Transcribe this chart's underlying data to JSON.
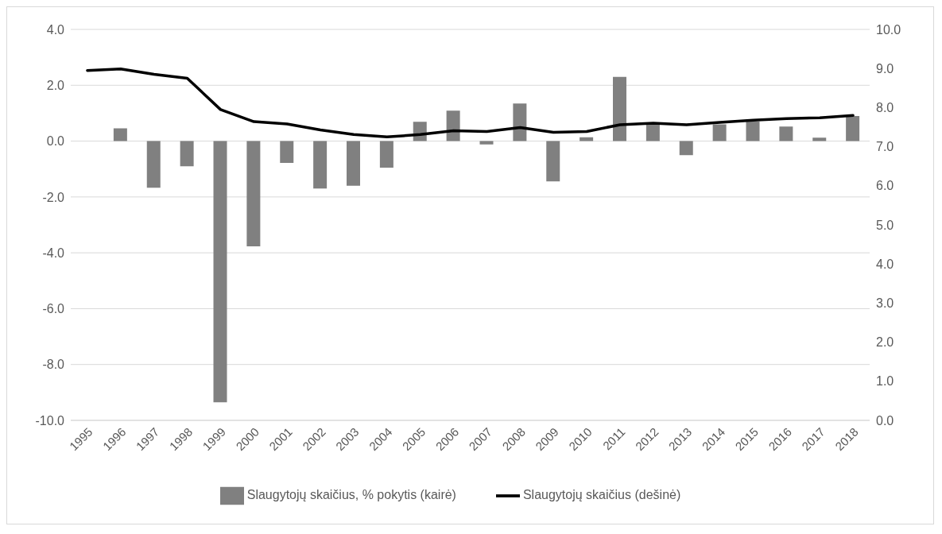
{
  "chart_data": {
    "type": "bar",
    "categories": [
      "1995",
      "1996",
      "1997",
      "1998",
      "1999",
      "2000",
      "2001",
      "2002",
      "2003",
      "2004",
      "2005",
      "2006",
      "2007",
      "2008",
      "2009",
      "2010",
      "2011",
      "2012",
      "2013",
      "2014",
      "2015",
      "2016",
      "2017",
      "2018"
    ],
    "series": [
      {
        "name": "Slaugytojų skaičius, % pokytis (kairė)",
        "color": "#808080",
        "values": [
          null,
          0.46,
          -1.67,
          -0.9,
          -9.35,
          -3.77,
          -0.78,
          -1.7,
          -1.6,
          -0.95,
          0.69,
          1.09,
          -0.12,
          1.35,
          -1.44,
          0.14,
          2.3,
          0.6,
          -0.5,
          0.6,
          0.7,
          0.52,
          0.12,
          0.9
        ]
      },
      {
        "name": "Slaugytojų skaičius (dešinė)",
        "type": "line",
        "axis": "y2",
        "color": "#000000",
        "values": [
          8.95,
          8.99,
          8.85,
          8.75,
          7.95,
          7.64,
          7.58,
          7.43,
          7.31,
          7.25,
          7.31,
          7.41,
          7.39,
          7.49,
          7.37,
          7.39,
          7.56,
          7.6,
          7.56,
          7.62,
          7.68,
          7.72,
          7.74,
          7.8
        ]
      }
    ],
    "ylim": [
      -10,
      4
    ],
    "yticks": [
      {
        "value": -10,
        "label": "-10.0"
      },
      {
        "value": -8,
        "label": "-8.0"
      },
      {
        "value": -6,
        "label": "-6.0"
      },
      {
        "value": -4,
        "label": "-4.0"
      },
      {
        "value": -2,
        "label": "-2.0"
      },
      {
        "value": 0,
        "label": "0.0"
      },
      {
        "value": 2,
        "label": "2.0"
      },
      {
        "value": 4,
        "label": "4.0"
      }
    ],
    "y2lim": [
      0,
      10
    ],
    "y2ticks": [
      {
        "value": 0,
        "label": "0.0"
      },
      {
        "value": 1,
        "label": "1.0"
      },
      {
        "value": 2,
        "label": "2.0"
      },
      {
        "value": 3,
        "label": "3.0"
      },
      {
        "value": 4,
        "label": "4.0"
      },
      {
        "value": 5,
        "label": "5.0"
      },
      {
        "value": 6,
        "label": "6.0"
      },
      {
        "value": 7,
        "label": "7.0"
      },
      {
        "value": 8,
        "label": "8.0"
      },
      {
        "value": 9,
        "label": "9.0"
      },
      {
        "value": 10,
        "label": "10.0"
      }
    ],
    "grid": "y",
    "legend": "bottom",
    "marker": "none",
    "line_style": "solid"
  }
}
